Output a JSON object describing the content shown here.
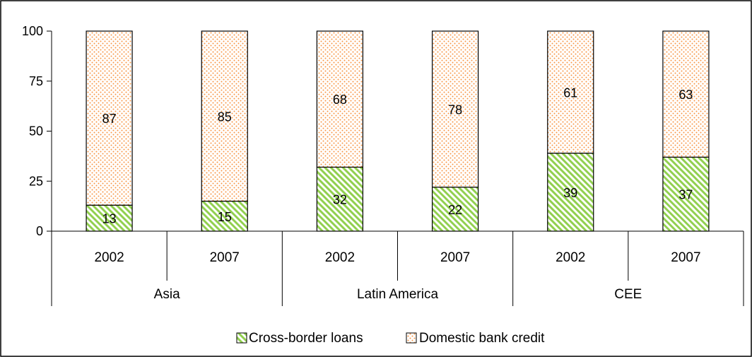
{
  "chart_data": {
    "type": "bar",
    "stacked": true,
    "title": "",
    "xlabel": "",
    "ylabel": "",
    "ylim": [
      0,
      100
    ],
    "yticks": [
      0,
      25,
      50,
      75,
      100
    ],
    "grid": false,
    "legend_position": "bottom",
    "groups": [
      {
        "label": "Asia",
        "categories": [
          "2002",
          "2007"
        ]
      },
      {
        "label": "Latin America",
        "categories": [
          "2002",
          "2007"
        ]
      },
      {
        "label": "CEE",
        "categories": [
          "2002",
          "2007"
        ]
      }
    ],
    "series": [
      {
        "name": "Cross-border loans",
        "values": [
          13,
          15,
          32,
          22,
          39,
          37
        ],
        "color": "#92d050",
        "pattern": "diagonal-hatch"
      },
      {
        "name": "Domestic bank credit",
        "values": [
          87,
          85,
          68,
          78,
          61,
          63
        ],
        "color": "#f79646",
        "pattern": "dots"
      }
    ]
  }
}
